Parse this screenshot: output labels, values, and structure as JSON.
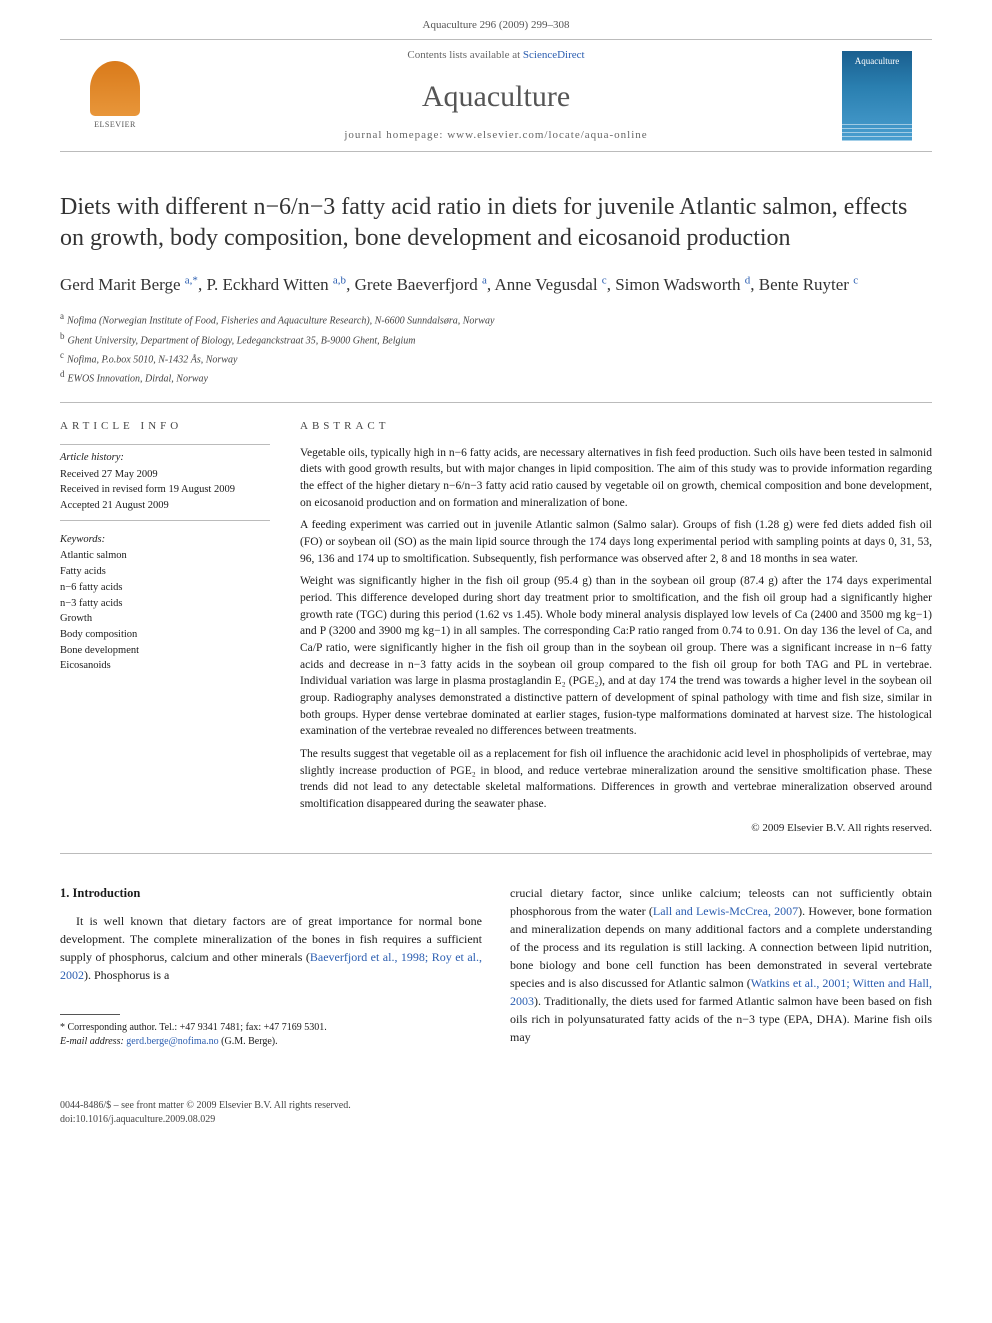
{
  "header": {
    "citation": "Aquaculture 296 (2009) 299–308"
  },
  "masthead": {
    "contents_prefix": "Contents lists available at ",
    "contents_link": "ScienceDirect",
    "journal": "Aquaculture",
    "homepage_prefix": "journal homepage: ",
    "homepage_url": "www.elsevier.com/locate/aqua-online",
    "publisher": "ELSEVIER",
    "cover_title": "Aquaculture"
  },
  "article": {
    "title": "Diets with different n−6/n−3 fatty acid ratio in diets for juvenile Atlantic salmon, effects on growth, body composition, bone development and eicosanoid production",
    "authors": [
      {
        "name": "Gerd Marit Berge",
        "marks": "a,*"
      },
      {
        "name": "P. Eckhard Witten",
        "marks": "a,b"
      },
      {
        "name": "Grete Baeverfjord",
        "marks": "a"
      },
      {
        "name": "Anne Vegusdal",
        "marks": "c"
      },
      {
        "name": "Simon Wadsworth",
        "marks": "d"
      },
      {
        "name": "Bente Ruyter",
        "marks": "c"
      }
    ],
    "affiliations": [
      {
        "mark": "a",
        "text": "Nofima (Norwegian Institute of Food, Fisheries and Aquaculture Research), N-6600 Sunndalsøra, Norway"
      },
      {
        "mark": "b",
        "text": "Ghent University, Department of Biology, Ledeganckstraat 35, B-9000 Ghent, Belgium"
      },
      {
        "mark": "c",
        "text": "Nofima, P.o.box 5010, N-1432 Ås, Norway"
      },
      {
        "mark": "d",
        "text": "EWOS Innovation, Dirdal, Norway"
      }
    ]
  },
  "info": {
    "section_label": "article info",
    "history_label": "Article history:",
    "history": [
      "Received 27 May 2009",
      "Received in revised form 19 August 2009",
      "Accepted 21 August 2009"
    ],
    "keywords_label": "Keywords:",
    "keywords": [
      "Atlantic salmon",
      "Fatty acids",
      "n−6 fatty acids",
      "n−3 fatty acids",
      "Growth",
      "Body composition",
      "Bone development",
      "Eicosanoids"
    ]
  },
  "abstract": {
    "section_label": "abstract",
    "p1": "Vegetable oils, typically high in n−6 fatty acids, are necessary alternatives in fish feed production. Such oils have been tested in salmonid diets with good growth results, but with major changes in lipid composition. The aim of this study was to provide information regarding the effect of the higher dietary n−6/n−3 fatty acid ratio caused by vegetable oil on growth, chemical composition and bone development, on eicosanoid production and on formation and mineralization of bone.",
    "p2": "A feeding experiment was carried out in juvenile Atlantic salmon (Salmo salar). Groups of fish (1.28 g) were fed diets added fish oil (FO) or soybean oil (SO) as the main lipid source through the 174 days long experimental period with sampling points at days 0, 31, 53, 96, 136 and 174 up to smoltification. Subsequently, fish performance was observed after 2, 8 and 18 months in sea water.",
    "p3": "Weight was significantly higher in the fish oil group (95.4 g) than in the soybean oil group (87.4 g) after the 174 days experimental period. This difference developed during short day treatment prior to smoltification, and the fish oil group had a significantly higher growth rate (TGC) during this period (1.62 vs 1.45). Whole body mineral analysis displayed low levels of Ca (2400 and 3500 mg kg−1) and P (3200 and 3900 mg kg−1) in all samples. The corresponding Ca:P ratio ranged from 0.74 to 0.91. On day 136 the level of Ca, and Ca/P ratio, were significantly higher in the fish oil group than in the soybean oil group. There was a significant increase in n−6 fatty acids and decrease in n−3 fatty acids in the soybean oil group compared to the fish oil group for both TAG and PL in vertebrae. Individual variation was large in plasma prostaglandin E₂ (PGE₂), and at day 174 the trend was towards a higher level in the soybean oil group. Radiography analyses demonstrated a distinctive pattern of development of spinal pathology with time and fish size, similar in both groups. Hyper dense vertebrae dominated at earlier stages, fusion-type malformations dominated at harvest size. The histological examination of the vertebrae revealed no differences between treatments.",
    "p4": "The results suggest that vegetable oil as a replacement for fish oil influence the arachidonic acid level in phospholipids of vertebrae, may slightly increase production of PGE₂ in blood, and reduce vertebrae mineralization around the sensitive smoltification phase. These trends did not lead to any detectable skeletal malformations. Differences in growth and vertebrae mineralization observed around smoltification disappeared during the seawater phase.",
    "copyright": "© 2009 Elsevier B.V. All rights reserved."
  },
  "body": {
    "intro_heading": "1. Introduction",
    "col1_p1a": "It is well known that dietary factors are of great importance for normal bone development. The complete mineralization of the bones in fish requires a sufficient supply of phosphorus, calcium and other minerals (",
    "col1_cite1": "Baeverfjord et al., 1998; Roy et al., 2002",
    "col1_p1b": "). Phosphorus is a",
    "col2_p1a": "crucial dietary factor, since unlike calcium; teleosts can not sufficiently obtain phosphorous from the water (",
    "col2_cite1": "Lall and Lewis-McCrea, 2007",
    "col2_p1b": "). However, bone formation and mineralization depends on many additional factors and a complete understanding of the process and its regulation is still lacking. A connection between lipid nutrition, bone biology and bone cell function has been demonstrated in several vertebrate species and is also discussed for Atlantic salmon (",
    "col2_cite2": "Watkins et al., 2001; Witten and Hall, 2003",
    "col2_p1c": "). Traditionally, the diets used for farmed Atlantic salmon have been based on fish oils rich in polyunsaturated fatty acids of the n−3 type (EPA, DHA). Marine fish oils may"
  },
  "footnote": {
    "corr_label": "* Corresponding author. Tel.: +47 9341 7481; fax: +47 7169 5301.",
    "email_label": "E-mail address:",
    "email": "gerd.berge@nofima.no",
    "email_name": "(G.M. Berge)."
  },
  "footer": {
    "line1": "0044-8486/$ – see front matter © 2009 Elsevier B.V. All rights reserved.",
    "line2": "doi:10.1016/j.aquaculture.2009.08.029"
  },
  "colors": {
    "link": "#2a5db0",
    "text": "#1a1a1a",
    "muted": "#555555",
    "rule": "#bbbbbb"
  }
}
